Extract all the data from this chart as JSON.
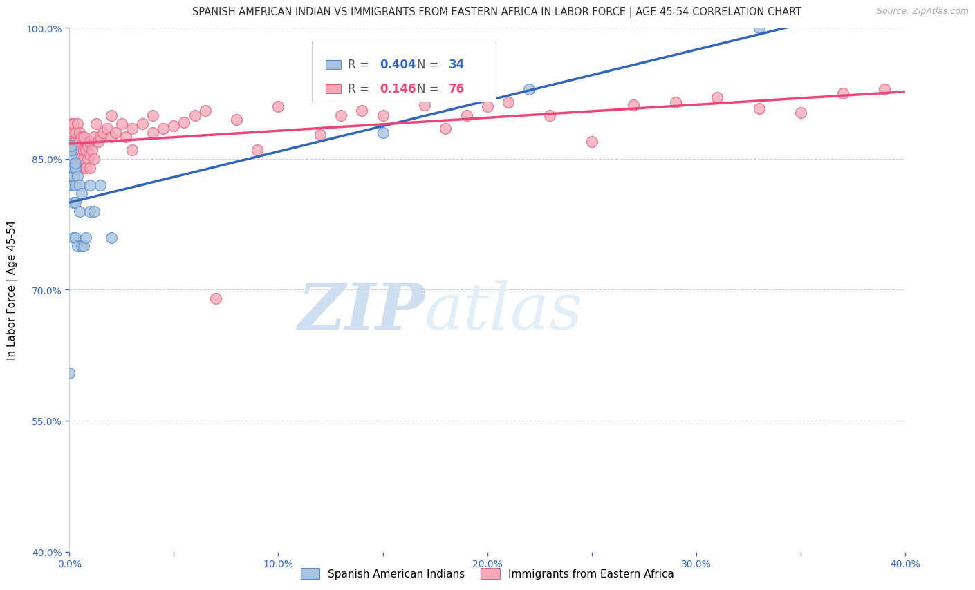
{
  "title": "SPANISH AMERICAN INDIAN VS IMMIGRANTS FROM EASTERN AFRICA IN LABOR FORCE | AGE 45-54 CORRELATION CHART",
  "source": "Source: ZipAtlas.com",
  "ylabel": "In Labor Force | Age 45-54",
  "xmin": 0.0,
  "xmax": 0.4,
  "ymin": 0.4,
  "ymax": 1.0,
  "xtick_labels": [
    "0.0%",
    "",
    "10.0%",
    "",
    "20.0%",
    "",
    "30.0%",
    "",
    "40.0%"
  ],
  "xtick_values": [
    0.0,
    0.05,
    0.1,
    0.15,
    0.2,
    0.25,
    0.3,
    0.35,
    0.4
  ],
  "ytick_labels": [
    "100.0%",
    "85.0%",
    "70.0%",
    "55.0%",
    "40.0%"
  ],
  "ytick_values": [
    1.0,
    0.85,
    0.7,
    0.55,
    0.4
  ],
  "blue_color": "#A8C4E0",
  "pink_color": "#F4A8B8",
  "blue_edge_color": "#5588CC",
  "pink_edge_color": "#E06080",
  "blue_line_color": "#3366BB",
  "pink_line_color": "#EE4477",
  "legend1": "Spanish American Indians",
  "legend2": "Immigrants from Eastern Africa",
  "watermark_zip": "ZIP",
  "watermark_atlas": "atlas",
  "blue_x": [
    0.0,
    0.0,
    0.0,
    0.001,
    0.001,
    0.001,
    0.001,
    0.001,
    0.002,
    0.002,
    0.002,
    0.002,
    0.002,
    0.003,
    0.003,
    0.003,
    0.003,
    0.003,
    0.004,
    0.004,
    0.005,
    0.005,
    0.006,
    0.006,
    0.007,
    0.008,
    0.01,
    0.01,
    0.012,
    0.015,
    0.02,
    0.15,
    0.22,
    0.33
  ],
  "blue_y": [
    0.605,
    0.82,
    0.83,
    0.84,
    0.85,
    0.855,
    0.86,
    0.865,
    0.76,
    0.8,
    0.82,
    0.83,
    0.84,
    0.76,
    0.8,
    0.82,
    0.84,
    0.845,
    0.75,
    0.83,
    0.79,
    0.82,
    0.75,
    0.81,
    0.75,
    0.76,
    0.79,
    0.82,
    0.79,
    0.82,
    0.76,
    0.88,
    0.93,
    1.0
  ],
  "pink_x": [
    0.0,
    0.001,
    0.001,
    0.002,
    0.002,
    0.002,
    0.003,
    0.003,
    0.003,
    0.003,
    0.004,
    0.004,
    0.004,
    0.004,
    0.005,
    0.005,
    0.005,
    0.006,
    0.006,
    0.006,
    0.007,
    0.007,
    0.007,
    0.008,
    0.008,
    0.009,
    0.009,
    0.01,
    0.01,
    0.01,
    0.011,
    0.012,
    0.012,
    0.013,
    0.014,
    0.015,
    0.016,
    0.018,
    0.02,
    0.02,
    0.022,
    0.025,
    0.027,
    0.03,
    0.03,
    0.035,
    0.04,
    0.04,
    0.045,
    0.05,
    0.055,
    0.06,
    0.065,
    0.07,
    0.08,
    0.09,
    0.1,
    0.12,
    0.13,
    0.14,
    0.15,
    0.17,
    0.18,
    0.19,
    0.2,
    0.21,
    0.23,
    0.25,
    0.27,
    0.29,
    0.31,
    0.33,
    0.35,
    0.37,
    0.39
  ],
  "pink_y": [
    0.88,
    0.87,
    0.89,
    0.86,
    0.87,
    0.89,
    0.85,
    0.86,
    0.87,
    0.88,
    0.84,
    0.86,
    0.87,
    0.89,
    0.855,
    0.87,
    0.88,
    0.84,
    0.86,
    0.875,
    0.85,
    0.86,
    0.875,
    0.84,
    0.86,
    0.85,
    0.865,
    0.84,
    0.855,
    0.87,
    0.86,
    0.85,
    0.875,
    0.89,
    0.87,
    0.875,
    0.88,
    0.885,
    0.875,
    0.9,
    0.88,
    0.89,
    0.875,
    0.86,
    0.885,
    0.89,
    0.88,
    0.9,
    0.885,
    0.888,
    0.892,
    0.9,
    0.905,
    0.69,
    0.895,
    0.86,
    0.91,
    0.878,
    0.9,
    0.905,
    0.9,
    0.912,
    0.885,
    0.9,
    0.91,
    0.915,
    0.9,
    0.87,
    0.912,
    0.915,
    0.92,
    0.908,
    0.903,
    0.925,
    0.93
  ],
  "title_fontsize": 10.5,
  "tick_fontsize": 10,
  "legend_fontsize": 12
}
